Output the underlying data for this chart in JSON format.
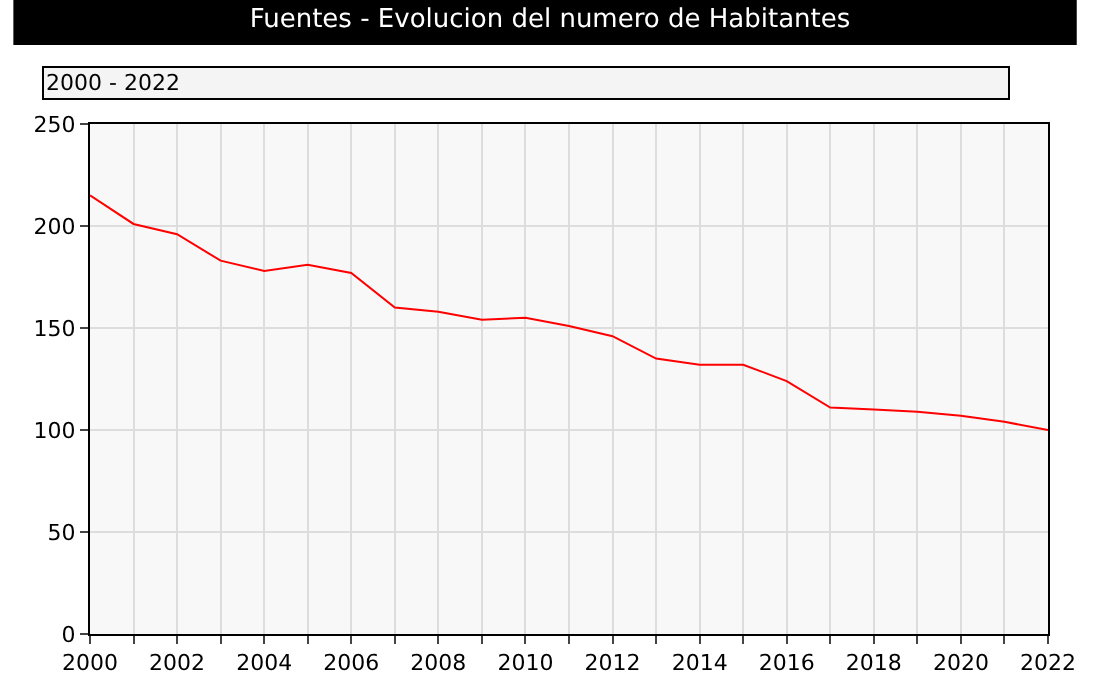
{
  "chart_data": {
    "type": "line",
    "title": "Fuentes - Evolucion del numero de Habitantes",
    "subtitle": "2000 - 2022",
    "x": [
      2000,
      2001,
      2002,
      2003,
      2004,
      2005,
      2006,
      2007,
      2008,
      2009,
      2010,
      2011,
      2012,
      2013,
      2014,
      2015,
      2016,
      2017,
      2018,
      2019,
      2020,
      2021,
      2022
    ],
    "series": [
      {
        "color": "#ff0000",
        "values": [
          215,
          201,
          196,
          183,
          178,
          181,
          177,
          160,
          158,
          154,
          155,
          151,
          146,
          135,
          132,
          132,
          124,
          111,
          110,
          109,
          107,
          104,
          100
        ]
      }
    ],
    "xlim": [
      2000,
      2022
    ],
    "xticks": [
      2000,
      {
        "value": 2001,
        "label": null
      },
      2002,
      {
        "value": 2003,
        "label": null
      },
      2004,
      {
        "value": 2005,
        "label": null
      },
      2006,
      {
        "value": 2007,
        "label": null
      },
      2008,
      {
        "value": 2009,
        "label": null
      },
      2010,
      {
        "value": 2011,
        "label": null
      },
      2012,
      {
        "value": 2013,
        "label": null
      },
      2014,
      {
        "value": 2015,
        "label": null
      },
      2016,
      {
        "value": 2017,
        "label": null
      },
      2018,
      {
        "value": 2019,
        "label": null
      },
      2020,
      {
        "value": 2021,
        "label": null
      },
      2022
    ],
    "ylim": [
      0,
      250
    ],
    "yticks": [
      0,
      50,
      100,
      150,
      200,
      250
    ],
    "grid": true,
    "line_style": "solid"
  }
}
